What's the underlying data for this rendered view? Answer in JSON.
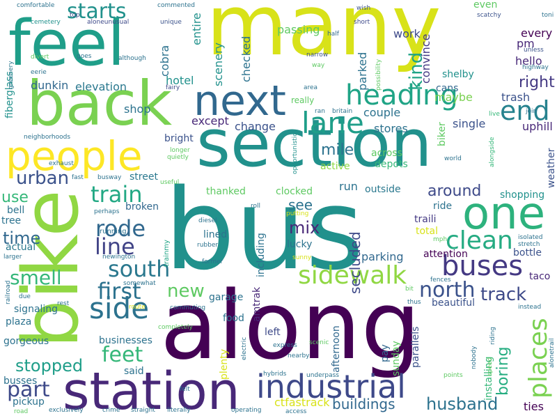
{
  "palette": {
    "purple": "#440154",
    "indigo": "#3b528b",
    "blue": "#31688e",
    "teal": "#21918c",
    "green": "#35b779",
    "lime": "#90d743",
    "yellow": "#fde725"
  },
  "words": [
    {
      "text": "bus"
    },
    {
      "text": "along"
    },
    {
      "text": "section"
    },
    {
      "text": "many"
    },
    {
      "text": "bike"
    },
    {
      "text": "feel"
    },
    {
      "text": "back"
    },
    {
      "text": "station"
    },
    {
      "text": "people"
    },
    {
      "text": "next"
    },
    {
      "text": "one"
    },
    {
      "text": "industrial"
    },
    {
      "text": "lane"
    },
    {
      "text": "heading"
    },
    {
      "text": "end"
    },
    {
      "text": "sidewalk"
    },
    {
      "text": "buses"
    },
    {
      "text": "clean"
    },
    {
      "text": "places"
    },
    {
      "text": "side"
    },
    {
      "text": "south"
    },
    {
      "text": "north"
    },
    {
      "text": "first"
    },
    {
      "text": "rode"
    },
    {
      "text": "line"
    },
    {
      "text": "train"
    },
    {
      "text": "starts"
    },
    {
      "text": "smell"
    },
    {
      "text": "part"
    },
    {
      "text": "feet"
    },
    {
      "text": "urban"
    },
    {
      "text": "around"
    },
    {
      "text": "husband"
    },
    {
      "text": "boring"
    },
    {
      "text": "track"
    },
    {
      "text": "stopped"
    },
    {
      "text": "mix"
    },
    {
      "text": "secluded"
    },
    {
      "text": "kind"
    },
    {
      "text": "time"
    },
    {
      "text": "new"
    },
    {
      "text": "buildings"
    },
    {
      "text": "mile"
    },
    {
      "text": "right"
    },
    {
      "text": "use"
    },
    {
      "text": "see"
    },
    {
      "text": "work"
    },
    {
      "text": "every"
    },
    {
      "text": "cobra"
    },
    {
      "text": "entire"
    },
    {
      "text": "checked"
    },
    {
      "text": "scenery"
    },
    {
      "text": "passing"
    },
    {
      "text": "parked"
    },
    {
      "text": "convince"
    },
    {
      "text": "hotel"
    },
    {
      "text": "dunkin"
    },
    {
      "text": "elevation"
    },
    {
      "text": "shop"
    },
    {
      "text": "except"
    },
    {
      "text": "change"
    },
    {
      "text": "couple"
    },
    {
      "text": "stores"
    },
    {
      "text": "single"
    },
    {
      "text": "uphill"
    },
    {
      "text": "trash"
    },
    {
      "text": "maybe"
    },
    {
      "text": "cans"
    },
    {
      "text": "hello"
    },
    {
      "text": "pm"
    },
    {
      "text": "shelby"
    },
    {
      "text": "biker"
    },
    {
      "text": "weather"
    },
    {
      "text": "even"
    },
    {
      "text": "fiberglass"
    },
    {
      "text": "bright"
    },
    {
      "text": "across"
    },
    {
      "text": "depots"
    },
    {
      "text": "active"
    },
    {
      "text": "street"
    },
    {
      "text": "run"
    },
    {
      "text": "outside"
    },
    {
      "text": "shopping"
    },
    {
      "text": "thanked"
    },
    {
      "text": "clocked"
    },
    {
      "text": "broken"
    },
    {
      "text": "ride"
    },
    {
      "text": "traili"
    },
    {
      "text": "total"
    },
    {
      "text": "bell"
    },
    {
      "text": "tree"
    },
    {
      "text": "actual"
    },
    {
      "text": "lined"
    },
    {
      "text": "lucky"
    },
    {
      "text": "parking"
    },
    {
      "text": "including"
    },
    {
      "text": "attention"
    },
    {
      "text": "bottle"
    },
    {
      "text": "taco"
    },
    {
      "text": "beautiful"
    },
    {
      "text": "signaling"
    },
    {
      "text": "plaza"
    },
    {
      "text": "gorgeous"
    },
    {
      "text": "garage"
    },
    {
      "text": "food"
    },
    {
      "text": "amtrak"
    },
    {
      "text": "businesses"
    },
    {
      "text": "said"
    },
    {
      "text": "left"
    },
    {
      "text": "afternoon"
    },
    {
      "text": "pay"
    },
    {
      "text": "sunday"
    },
    {
      "text": "parallels"
    },
    {
      "text": "installing"
    },
    {
      "text": "ties"
    },
    {
      "text": "busses"
    },
    {
      "text": "pickup"
    },
    {
      "text": "ctfastrack"
    },
    {
      "text": "plenty"
    },
    {
      "text": "running"
    },
    {
      "text": "trainmy"
    },
    {
      "text": "comfortable"
    },
    {
      "text": "top"
    },
    {
      "text": "commented"
    },
    {
      "text": "wish"
    },
    {
      "text": "toni"
    },
    {
      "text": "cemetery"
    },
    {
      "text": "aloneunusual"
    },
    {
      "text": "unique"
    },
    {
      "text": "short"
    },
    {
      "text": "half"
    },
    {
      "text": "scatchy"
    },
    {
      "text": "unless"
    },
    {
      "text": "highway"
    },
    {
      "text": "divert"
    },
    {
      "text": "goes"
    },
    {
      "text": "although"
    },
    {
      "text": "narrow"
    },
    {
      "text": "way"
    },
    {
      "text": "greenery"
    },
    {
      "text": "eerie"
    },
    {
      "text": "possibility"
    },
    {
      "text": "area"
    },
    {
      "text": "fairy"
    },
    {
      "text": "really"
    },
    {
      "text": "ran"
    },
    {
      "text": "britain"
    },
    {
      "text": "join"
    },
    {
      "text": "live"
    },
    {
      "text": "neighborhoods"
    },
    {
      "text": "opportunistic"
    },
    {
      "text": "longer"
    },
    {
      "text": "quietly"
    },
    {
      "text": "world"
    },
    {
      "text": "alongside"
    },
    {
      "text": "exhaust"
    },
    {
      "text": "fast"
    },
    {
      "text": "busway"
    },
    {
      "text": "useful"
    },
    {
      "text": "perhaps"
    },
    {
      "text": "roll"
    },
    {
      "text": "putting"
    },
    {
      "text": "diesel"
    },
    {
      "text": "rubber"
    },
    {
      "text": "mph"
    },
    {
      "text": "isolated"
    },
    {
      "text": "stretch"
    },
    {
      "text": "larger"
    },
    {
      "text": "newington"
    },
    {
      "text": "sunny"
    },
    {
      "text": "former"
    },
    {
      "text": "somewhat"
    },
    {
      "text": "fences"
    },
    {
      "text": "bit"
    },
    {
      "text": "instead"
    },
    {
      "text": "railroad"
    },
    {
      "text": "due"
    },
    {
      "text": "rest"
    },
    {
      "text": "route"
    },
    {
      "text": "commuting"
    },
    {
      "text": "thus"
    },
    {
      "text": "riding"
    },
    {
      "text": "alonetrail"
    },
    {
      "text": "completely"
    },
    {
      "text": "electric"
    },
    {
      "text": "express"
    },
    {
      "text": "scenic"
    },
    {
      "text": "nobody"
    },
    {
      "text": "speed"
    },
    {
      "text": "nearby"
    },
    {
      "text": "hybrids"
    },
    {
      "text": "underpass"
    },
    {
      "text": "points"
    },
    {
      "text": "felt"
    },
    {
      "text": "road"
    },
    {
      "text": "exclusively"
    },
    {
      "text": "crime"
    },
    {
      "text": "straight"
    },
    {
      "text": "literally"
    },
    {
      "text": "operating"
    },
    {
      "text": "access"
    }
  ]
}
